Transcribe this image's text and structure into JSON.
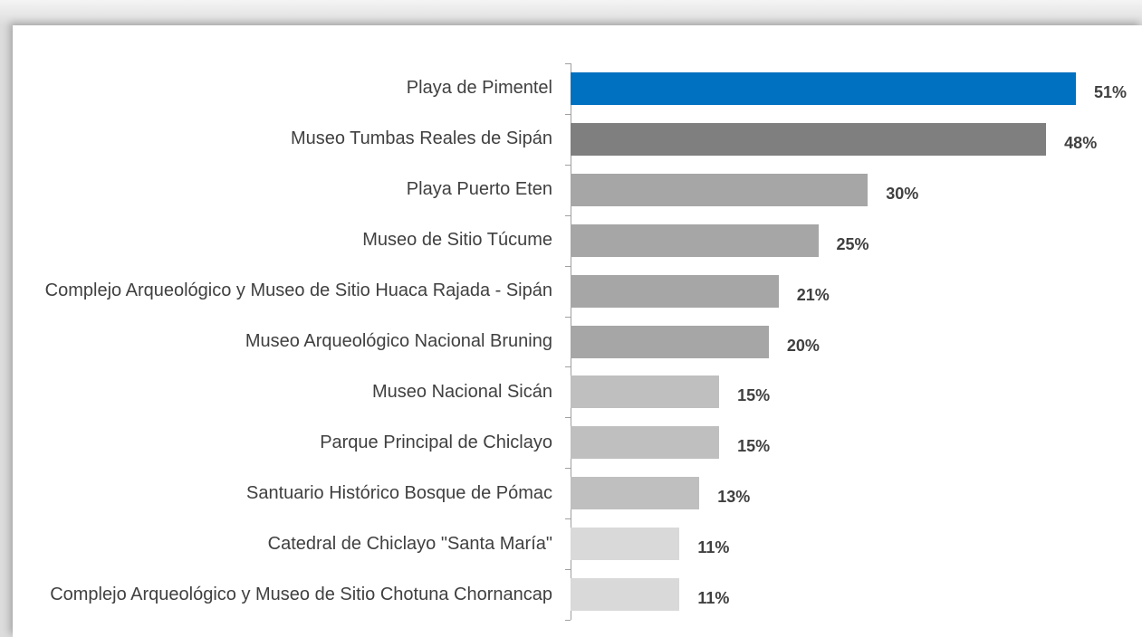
{
  "chart_data": {
    "type": "bar",
    "orientation": "horizontal",
    "categories": [
      "Playa de Pimentel",
      "Museo Tumbas Reales de Sipán",
      "Playa Puerto Eten",
      "Museo de Sitio Túcume",
      "Complejo Arqueológico y Museo de Sitio Huaca Rajada - Sipán",
      "Museo Arqueológico Nacional Bruning",
      "Museo Nacional Sicán",
      "Parque Principal de Chiclayo",
      "Santuario Histórico Bosque de Pómac",
      "Catedral de Chiclayo \"Santa María\"",
      "Complejo Arqueológico y Museo de Sitio Chotuna Chornancap"
    ],
    "values": [
      51,
      48,
      30,
      25,
      21,
      20,
      15,
      15,
      13,
      11,
      11
    ],
    "value_labels": [
      "51%",
      "48%",
      "30%",
      "25%",
      "21%",
      "20%",
      "15%",
      "15%",
      "13%",
      "11%",
      "11%"
    ],
    "colors": [
      "#0070c0",
      "#7f7f7f",
      "#a6a6a6",
      "#a6a6a6",
      "#a6a6a6",
      "#a6a6a6",
      "#bfbfbf",
      "#bfbfbf",
      "#bfbfbf",
      "#d9d9d9",
      "#d9d9d9"
    ]
  }
}
